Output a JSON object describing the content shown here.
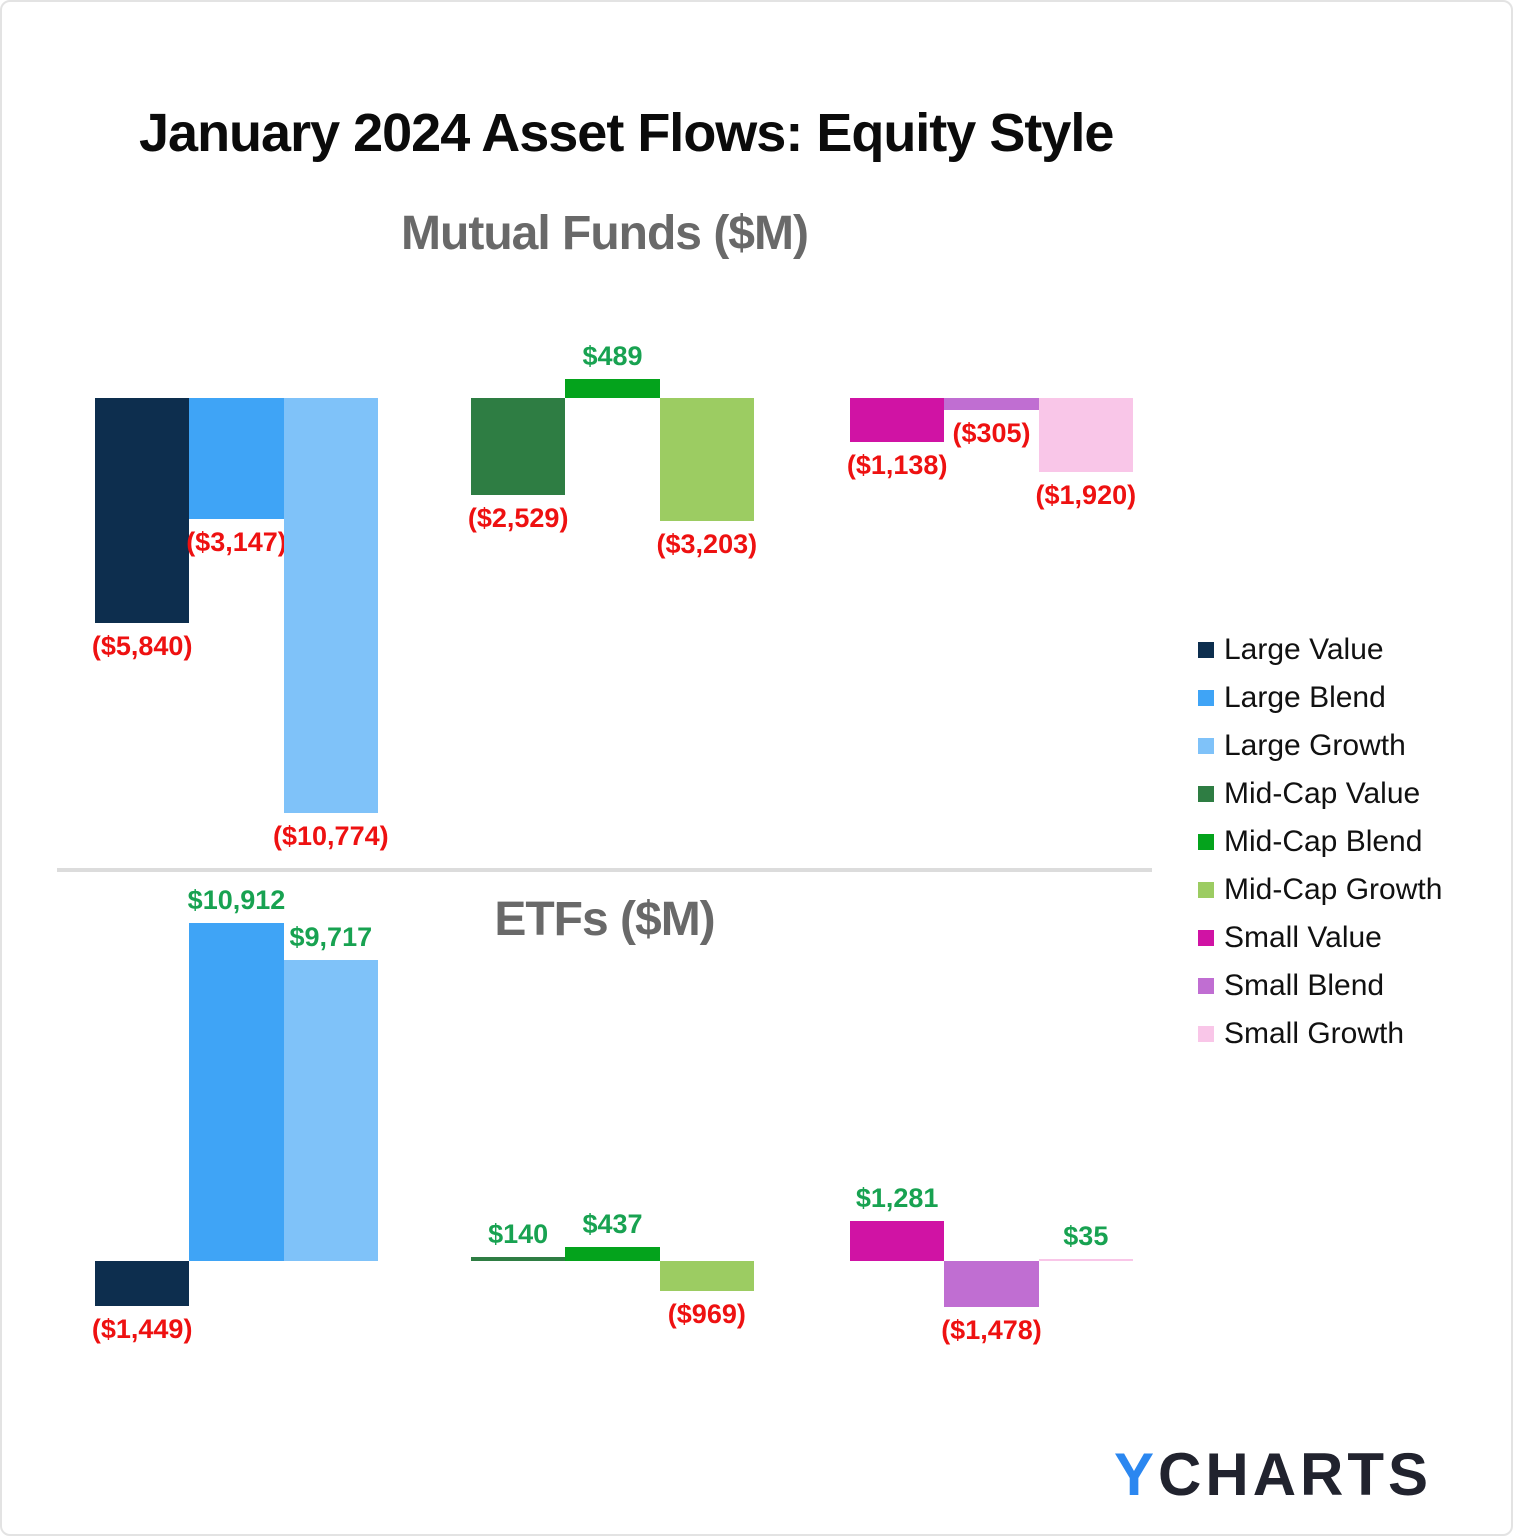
{
  "page": {
    "title": "January 2024 Asset Flows: Equity Style"
  },
  "brand": {
    "y": "Y",
    "charts": "CHARTS",
    "y_color": "#2b87f0",
    "charts_color": "#21232e"
  },
  "colors": {
    "title": "#0b0b0b",
    "subtitle": "#696969",
    "divider": "#dcdcdc",
    "positive_label": "#18a251",
    "negative_label": "#ee1111",
    "background": "#ffffff"
  },
  "legend": {
    "position": "right",
    "items": [
      {
        "label": "Large Value",
        "color": "#0d2e4e"
      },
      {
        "label": "Large Blend",
        "color": "#3fa4f6"
      },
      {
        "label": "Large Growth",
        "color": "#7fc2f9"
      },
      {
        "label": "Mid-Cap Value",
        "color": "#2e7d43"
      },
      {
        "label": "Mid-Cap Blend",
        "color": "#04a31c"
      },
      {
        "label": "Mid-Cap Growth",
        "color": "#9ccc62"
      },
      {
        "label": "Small Value",
        "color": "#d013a4"
      },
      {
        "label": "Small Blend",
        "color": "#c06ed2"
      },
      {
        "label": "Small Growth",
        "color": "#f9c6e8"
      }
    ]
  },
  "chart_data": [
    {
      "type": "bar",
      "title": "Mutual Funds ($M)",
      "unit": "$M",
      "categories": [
        "Large Value",
        "Large Blend",
        "Large Growth",
        "Mid-Cap Value",
        "Mid-Cap Blend",
        "Mid-Cap Growth",
        "Small Value",
        "Small Blend",
        "Small Growth"
      ],
      "values": [
        -5840,
        -3147,
        -10774,
        -2529,
        489,
        -3203,
        -1138,
        -305,
        -1920
      ],
      "value_labels": [
        "($5,840)",
        "($3,147)",
        "($10,774)",
        "($2,529)",
        "$489",
        "($3,203)",
        "($1,138)",
        "($305)",
        "($1,920)"
      ],
      "groups": [
        "Large",
        "Mid-Cap",
        "Small"
      ],
      "axis": {
        "baseline": 0,
        "gridlines": false,
        "axis_line_visible": false,
        "negatives_drawn_downward": true,
        "negative_format": "red parentheses",
        "positive_format": "green"
      }
    },
    {
      "type": "bar",
      "title": "ETFs ($M)",
      "unit": "$M",
      "categories": [
        "Large Value",
        "Large Blend",
        "Large Growth",
        "Mid-Cap Value",
        "Mid-Cap Blend",
        "Mid-Cap Growth",
        "Small Value",
        "Small Blend",
        "Small Growth"
      ],
      "values": [
        -1449,
        10912,
        9717,
        140,
        437,
        -969,
        1281,
        -1478,
        35
      ],
      "value_labels": [
        "($1,449)",
        "$10,912",
        "$9,717",
        "$140",
        "$437",
        "($969)",
        "$1,281",
        "($1,478)",
        "$35"
      ],
      "groups": [
        "Large",
        "Mid-Cap",
        "Small"
      ],
      "axis": {
        "baseline": 0,
        "gridlines": false,
        "axis_line_visible": false,
        "negatives_drawn_downward": true,
        "negative_format": "red parentheses",
        "positive_format": "green"
      }
    }
  ]
}
